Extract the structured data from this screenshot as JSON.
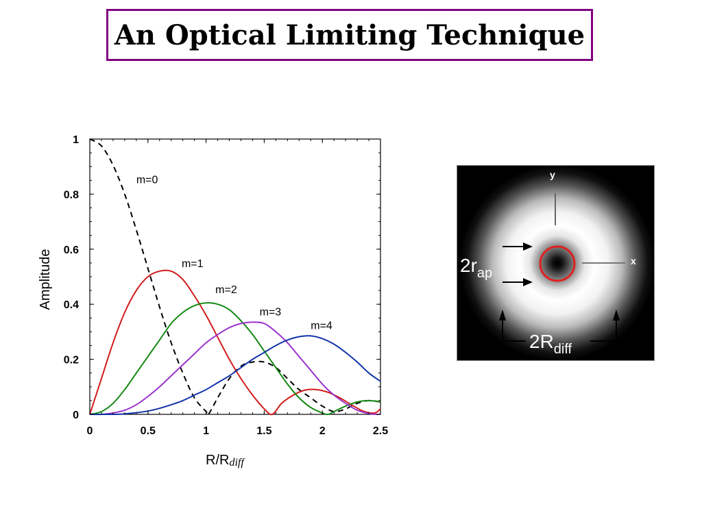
{
  "title": "An Optical Limiting Technique",
  "chart_data": {
    "type": "line",
    "xlabel": "R/R",
    "xlabel_sub": "diff",
    "ylabel": "Amplitude",
    "xlim": [
      0,
      2.5
    ],
    "ylim": [
      0,
      1
    ],
    "x_ticks": [
      "0",
      "0.5",
      "1",
      "1.5",
      "2",
      "2.5"
    ],
    "y_ticks": [
      "0",
      "0.2",
      "0.4",
      "0.6",
      "0.8",
      "1"
    ],
    "grid": false,
    "series": [
      {
        "name": "m=0",
        "color": "#000000",
        "dashed": true,
        "x": [
          0,
          0.1,
          0.2,
          0.3,
          0.4,
          0.5,
          0.6,
          0.7,
          0.8,
          0.9,
          1.0,
          1.02,
          1.1,
          1.2,
          1.3,
          1.4,
          1.5,
          1.6,
          1.7,
          1.8,
          1.9,
          2.0,
          2.1,
          2.2,
          2.3,
          2.4,
          2.5
        ],
        "y": [
          1.0,
          0.975,
          0.905,
          0.8,
          0.67,
          0.53,
          0.39,
          0.26,
          0.15,
          0.06,
          0.01,
          0.0,
          0.06,
          0.13,
          0.175,
          0.19,
          0.19,
          0.17,
          0.13,
          0.09,
          0.06,
          0.03,
          0.01,
          0.02,
          0.04,
          0.05,
          0.045
        ]
      },
      {
        "name": "m=1",
        "color": "#d21a1a",
        "dashed": false,
        "x": [
          0,
          0.1,
          0.2,
          0.3,
          0.4,
          0.5,
          0.6,
          0.7,
          0.8,
          0.9,
          1.0,
          1.1,
          1.2,
          1.3,
          1.4,
          1.5,
          1.57,
          1.65,
          1.75,
          1.85,
          1.95,
          2.05,
          2.15,
          2.25,
          2.35,
          2.45,
          2.5
        ],
        "y": [
          0,
          0.13,
          0.26,
          0.37,
          0.45,
          0.5,
          0.52,
          0.52,
          0.49,
          0.43,
          0.36,
          0.28,
          0.2,
          0.13,
          0.07,
          0.02,
          0.0,
          0.04,
          0.07,
          0.088,
          0.09,
          0.08,
          0.06,
          0.035,
          0.012,
          0.005,
          0.02
        ]
      },
      {
        "name": "m=2",
        "color": "#118811",
        "dashed": false,
        "x": [
          0,
          0.1,
          0.2,
          0.3,
          0.4,
          0.5,
          0.6,
          0.7,
          0.8,
          0.9,
          1.0,
          1.1,
          1.2,
          1.3,
          1.4,
          1.5,
          1.6,
          1.7,
          1.8,
          1.9,
          2.0,
          2.05,
          2.1,
          2.2,
          2.3,
          2.4,
          2.5
        ],
        "y": [
          0,
          0.01,
          0.04,
          0.09,
          0.15,
          0.21,
          0.27,
          0.33,
          0.37,
          0.395,
          0.405,
          0.4,
          0.38,
          0.34,
          0.29,
          0.23,
          0.17,
          0.11,
          0.06,
          0.025,
          0.005,
          0.0,
          0.01,
          0.03,
          0.045,
          0.05,
          0.045
        ]
      },
      {
        "name": "m=3",
        "color": "#9932cc",
        "dashed": false,
        "x": [
          0,
          0.1,
          0.2,
          0.3,
          0.4,
          0.5,
          0.6,
          0.7,
          0.8,
          0.9,
          1.0,
          1.1,
          1.2,
          1.3,
          1.4,
          1.5,
          1.6,
          1.7,
          1.8,
          1.9,
          2.0,
          2.1,
          2.2,
          2.3,
          2.4,
          2.48,
          2.5
        ],
        "y": [
          0,
          0.0,
          0.005,
          0.015,
          0.035,
          0.065,
          0.1,
          0.14,
          0.18,
          0.22,
          0.26,
          0.29,
          0.315,
          0.33,
          0.335,
          0.33,
          0.3,
          0.26,
          0.21,
          0.16,
          0.11,
          0.07,
          0.04,
          0.015,
          0.003,
          0.0,
          0.002
        ]
      },
      {
        "name": "m=4",
        "color": "#1133aa",
        "dashed": false,
        "x": [
          0,
          0.2,
          0.3,
          0.4,
          0.5,
          0.6,
          0.7,
          0.8,
          0.9,
          1.0,
          1.1,
          1.2,
          1.3,
          1.4,
          1.5,
          1.6,
          1.7,
          1.8,
          1.9,
          2.0,
          2.1,
          2.2,
          2.3,
          2.4,
          2.5
        ],
        "y": [
          0,
          0.0,
          0.002,
          0.006,
          0.012,
          0.022,
          0.035,
          0.05,
          0.07,
          0.09,
          0.115,
          0.14,
          0.17,
          0.2,
          0.225,
          0.25,
          0.27,
          0.282,
          0.285,
          0.275,
          0.255,
          0.225,
          0.19,
          0.15,
          0.12
        ]
      }
    ]
  },
  "diagram": {
    "y_axis": "y",
    "x_axis": "x",
    "aperture_label": "2r",
    "aperture_sub": "ap",
    "diff_label": "2R",
    "diff_sub": "diff",
    "ring_color": "#e02020"
  }
}
